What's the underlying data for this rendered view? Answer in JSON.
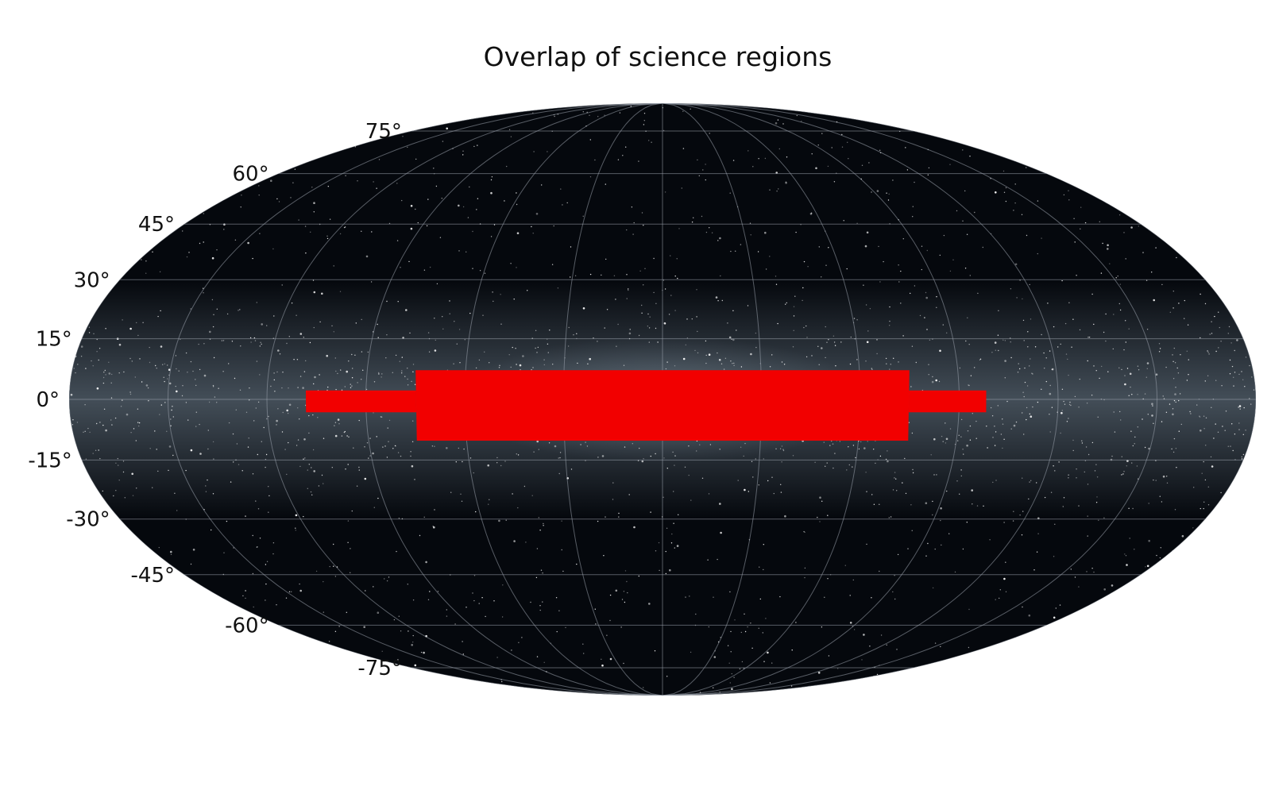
{
  "chart_data": {
    "type": "scatter",
    "title": "Overlap of science regions",
    "projection": "mollweide",
    "background": "all-sky star map with Milky Way band",
    "grid": true,
    "lat_ticks": [
      75,
      60,
      45,
      30,
      15,
      0,
      -15,
      -30,
      -45,
      -60,
      -75
    ],
    "lat_tick_labels": [
      "75°",
      "60°",
      "45°",
      "30°",
      "15°",
      "0°",
      "-15°",
      "-30°",
      "-45°",
      "-60°",
      "-75°"
    ],
    "lon_grid_step_deg": 30,
    "colors": {
      "region": "#f20000",
      "sky": "#05080d",
      "grid": "#9aa3ad"
    },
    "series": [
      {
        "color": "#f20000",
        "regions": [
          {
            "lon_range": [
              -75,
              75
            ],
            "lat_range": [
              -10,
              7
            ]
          },
          {
            "lon_range": [
              -108,
              -75
            ],
            "lat_range": [
              -3,
              2
            ]
          },
          {
            "lon_range": [
              75,
              98
            ],
            "lat_range": [
              -3,
              2
            ]
          }
        ]
      }
    ]
  }
}
